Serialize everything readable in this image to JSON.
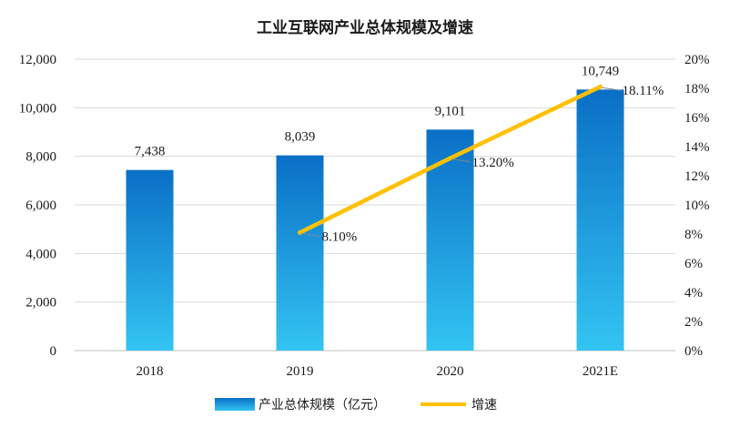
{
  "chart_data": {
    "type": "bar",
    "title": "工业互联网产业总体规模及增速",
    "categories": [
      "2018",
      "2019",
      "2020",
      "2021E"
    ],
    "series": [
      {
        "name": "产业总体规模（亿元）",
        "type": "bar",
        "axis": "left",
        "values": [
          7438,
          8039,
          9101,
          10749
        ],
        "labels": [
          "7,438",
          "8,039",
          "9,101",
          "10,749"
        ]
      },
      {
        "name": "增速",
        "type": "line",
        "axis": "right",
        "values": [
          null,
          8.1,
          13.2,
          18.11
        ],
        "labels": [
          "",
          "8.10%",
          "13.20%",
          "18.11%"
        ]
      }
    ],
    "y_left": {
      "min": 0,
      "max": 12000,
      "ticks": [
        "0",
        "2,000",
        "4,000",
        "6,000",
        "8,000",
        "10,000",
        "12,000"
      ]
    },
    "y_right": {
      "min": 0,
      "max": 20,
      "ticks": [
        "0%",
        "2%",
        "4%",
        "6%",
        "8%",
        "10%",
        "12%",
        "14%",
        "16%",
        "18%",
        "20%"
      ]
    },
    "grid": true,
    "legend_position": "bottom",
    "colors": {
      "bar_top": "#0a6fc6",
      "bar_bottom": "#33c4f2",
      "line": "#ffc000",
      "grid": "#d9d9d9"
    }
  }
}
